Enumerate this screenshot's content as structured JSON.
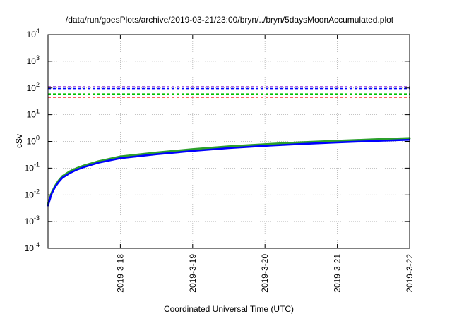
{
  "chart_data": {
    "type": "line",
    "title": "/data/run/goesPlots/archive/2019-03-21/23:00/bryn/../bryn/5daysMoonAccumulated.plot",
    "xlabel": "Coordinated Universal Time (UTC)",
    "ylabel": "cSv",
    "y_scale": "log",
    "ylim": [
      0.0001,
      10000
    ],
    "y_ticks": [
      {
        "value": 0.0001,
        "base": "10",
        "exp": "-4"
      },
      {
        "value": 0.001,
        "base": "10",
        "exp": "-3"
      },
      {
        "value": 0.01,
        "base": "10",
        "exp": "-2"
      },
      {
        "value": 0.1,
        "base": "10",
        "exp": "-1"
      },
      {
        "value": 1,
        "base": "10",
        "exp": "0"
      },
      {
        "value": 10,
        "base": "10",
        "exp": "1"
      },
      {
        "value": 100,
        "base": "10",
        "exp": "2"
      },
      {
        "value": 1000,
        "base": "10",
        "exp": "3"
      },
      {
        "value": 10000,
        "base": "10",
        "exp": "4"
      }
    ],
    "x_range": [
      "2019-03-17 00:00",
      "2019-03-22 00:00"
    ],
    "x_ticks": [
      "2019-3-18",
      "2019-3-19",
      "2019-3-20",
      "2019-3-21",
      "2019-3-22"
    ],
    "x_tick_dates": [
      "2019-03-18 00:00",
      "2019-03-19 00:00",
      "2019-03-20 00:00",
      "2019-03-21 00:00",
      "2019-03-22 00:00"
    ],
    "grid": true,
    "legend": "none",
    "thresholds": [
      {
        "color": "#7a00cc",
        "value": 110,
        "style": "dashed"
      },
      {
        "color": "#0000ff",
        "value": 95,
        "style": "dashed"
      },
      {
        "color": "#00c000",
        "value": 60,
        "style": "dashed"
      },
      {
        "color": "#ff0000",
        "value": 45,
        "style": "dashed"
      }
    ],
    "series": [
      {
        "color": "#2ca02c",
        "x": [
          "2019-03-17 00:00",
          "2019-03-17 01:12",
          "2019-03-17 02:24",
          "2019-03-17 03:36",
          "2019-03-17 04:48",
          "2019-03-17 07:12",
          "2019-03-17 09:36",
          "2019-03-17 12:00",
          "2019-03-17 16:48",
          "2019-03-18 00:00",
          "2019-03-18 12:00",
          "2019-03-19 00:00",
          "2019-03-19 12:00",
          "2019-03-20 00:00",
          "2019-03-20 12:00",
          "2019-03-21 00:00",
          "2019-03-21 12:00",
          "2019-03-22 00:00"
        ],
        "y": [
          0.0045,
          0.012,
          0.022,
          0.035,
          0.05,
          0.075,
          0.1,
          0.125,
          0.18,
          0.27,
          0.38,
          0.51,
          0.65,
          0.78,
          0.92,
          1.05,
          1.18,
          1.32
        ]
      },
      {
        "color": "#0000ff",
        "x": [
          "2019-03-17 00:00",
          "2019-03-17 01:12",
          "2019-03-17 02:24",
          "2019-03-17 03:36",
          "2019-03-17 04:48",
          "2019-03-17 07:12",
          "2019-03-17 09:36",
          "2019-03-17 12:00",
          "2019-03-17 16:48",
          "2019-03-18 00:00",
          "2019-03-18 12:00",
          "2019-03-19 00:00",
          "2019-03-19 12:00",
          "2019-03-20 00:00",
          "2019-03-20 12:00",
          "2019-03-21 00:00",
          "2019-03-21 12:00",
          "2019-03-22 00:00"
        ],
        "y": [
          0.004,
          0.011,
          0.02,
          0.031,
          0.044,
          0.065,
          0.088,
          0.11,
          0.16,
          0.235,
          0.33,
          0.44,
          0.56,
          0.68,
          0.8,
          0.92,
          1.03,
          1.15
        ]
      }
    ]
  }
}
